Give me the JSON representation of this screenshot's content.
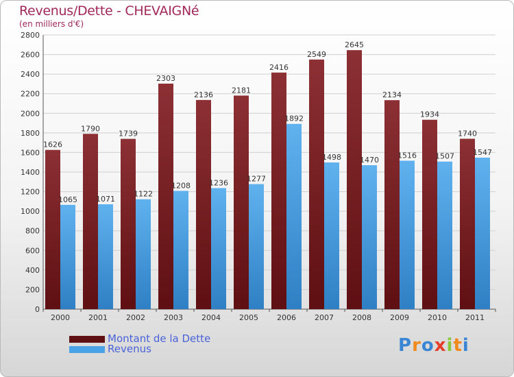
{
  "header": {
    "title": "Revenus/Dette - CHEVAIGNé",
    "subtitle": "(en milliers d'€)"
  },
  "legend": {
    "items": [
      {
        "label": "Montant de la Dette",
        "color": "#7a1f24"
      },
      {
        "label": "Revenus",
        "color": "#4aa3e6"
      }
    ]
  },
  "brand": {
    "letters": [
      "P",
      "r",
      "o",
      "x",
      "i",
      "t",
      "i"
    ],
    "colors": [
      "#3a86d4",
      "#f08a1c",
      "#3a86d4",
      "#e63d2b",
      "#8cc63f",
      "#f08a1c",
      "#3a86d4"
    ]
  },
  "colors": {
    "dette": "#7a1f24",
    "revenus": "#4aa3e6",
    "grid": "#d0d0d0"
  },
  "chart_data": {
    "type": "bar",
    "title": "Revenus/Dette - CHEVAIGNé",
    "subtitle": "(en milliers d'€)",
    "categories": [
      "2000",
      "2001",
      "2002",
      "2003",
      "2004",
      "2005",
      "2006",
      "2007",
      "2008",
      "2009",
      "2010",
      "2011"
    ],
    "series": [
      {
        "name": "Montant de la Dette",
        "values": [
          1626,
          1790,
          1739,
          2303,
          2136,
          2181,
          2416,
          2549,
          2645,
          2134,
          1934,
          1740
        ]
      },
      {
        "name": "Revenus",
        "values": [
          1065,
          1071,
          1122,
          1208,
          1236,
          1277,
          1892,
          1498,
          1470,
          1516,
          1507,
          1547
        ]
      }
    ],
    "ylim": [
      0,
      2800
    ],
    "yticks": [
      0,
      200,
      400,
      600,
      800,
      1000,
      1200,
      1400,
      1600,
      1800,
      2000,
      2200,
      2400,
      2600,
      2800
    ],
    "grid": true,
    "legend_position": "bottom-left"
  }
}
